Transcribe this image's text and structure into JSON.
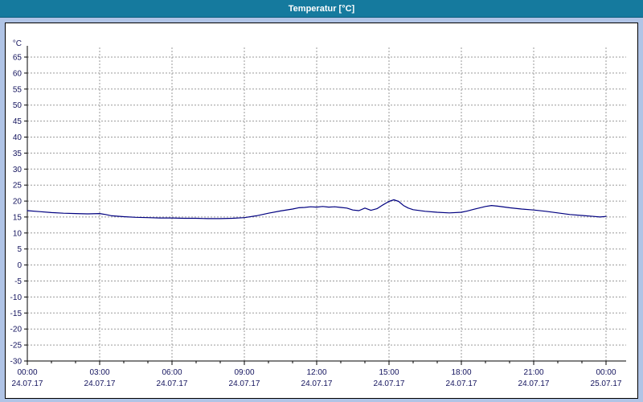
{
  "window": {
    "title": "Temperatur [°C]"
  },
  "colors": {
    "titlebar_bg": "#157a9e",
    "titlebar_text": "#ffffff",
    "window_bg": "#b0c4e6",
    "panel_bg": "#ffffff",
    "panel_border": "#000000",
    "grid": "#9a9a9a",
    "axis": "#000000",
    "tick_label": "#14145e",
    "series": "#000080"
  },
  "chart_data": {
    "type": "line",
    "title": "Temperatur [°C]",
    "xlabel": "",
    "ylabel": "°C",
    "ylim": [
      -30,
      67
    ],
    "ytick_step": 5,
    "yticks": [
      65,
      60,
      55,
      50,
      45,
      40,
      35,
      30,
      25,
      20,
      15,
      10,
      5,
      0,
      -5,
      -10,
      -15,
      -20,
      -25,
      -30
    ],
    "grid": "dashed",
    "legend_position": "none",
    "xticks": [
      {
        "hour": 0,
        "time": "00:00",
        "date": "24.07.17"
      },
      {
        "hour": 3,
        "time": "03:00",
        "date": "24.07.17"
      },
      {
        "hour": 6,
        "time": "06:00",
        "date": "24.07.17"
      },
      {
        "hour": 9,
        "time": "09:00",
        "date": "24.07.17"
      },
      {
        "hour": 12,
        "time": "12:00",
        "date": "24.07.17"
      },
      {
        "hour": 15,
        "time": "15:00",
        "date": "24.07.17"
      },
      {
        "hour": 18,
        "time": "18:00",
        "date": "24.07.17"
      },
      {
        "hour": 21,
        "time": "21:00",
        "date": "24.07.17"
      },
      {
        "hour": 24,
        "time": "00:00",
        "date": "25.07.17"
      }
    ],
    "series": [
      {
        "name": "Temperatur",
        "color": "#000080",
        "points": [
          [
            0,
            17.0
          ],
          [
            0.5,
            16.7
          ],
          [
            1,
            16.4
          ],
          [
            1.5,
            16.2
          ],
          [
            2,
            16.1
          ],
          [
            2.5,
            16.0
          ],
          [
            3,
            16.1
          ],
          [
            3.25,
            15.8
          ],
          [
            3.5,
            15.4
          ],
          [
            4,
            15.1
          ],
          [
            4.5,
            14.9
          ],
          [
            5,
            14.8
          ],
          [
            5.5,
            14.7
          ],
          [
            6,
            14.7
          ],
          [
            6.5,
            14.6
          ],
          [
            7,
            14.6
          ],
          [
            7.5,
            14.5
          ],
          [
            8,
            14.5
          ],
          [
            8.5,
            14.6
          ],
          [
            9,
            14.8
          ],
          [
            9.5,
            15.4
          ],
          [
            10,
            16.2
          ],
          [
            10.5,
            16.9
          ],
          [
            11,
            17.5
          ],
          [
            11.25,
            17.9
          ],
          [
            11.5,
            18.0
          ],
          [
            11.75,
            18.2
          ],
          [
            12,
            18.1
          ],
          [
            12.25,
            18.3
          ],
          [
            12.5,
            18.1
          ],
          [
            12.75,
            18.2
          ],
          [
            13,
            18.0
          ],
          [
            13.25,
            17.8
          ],
          [
            13.5,
            17.2
          ],
          [
            13.75,
            17.0
          ],
          [
            14,
            17.8
          ],
          [
            14.25,
            17.1
          ],
          [
            14.5,
            17.6
          ],
          [
            14.75,
            18.8
          ],
          [
            15,
            19.9
          ],
          [
            15.2,
            20.4
          ],
          [
            15.4,
            19.9
          ],
          [
            15.6,
            18.6
          ],
          [
            15.8,
            17.8
          ],
          [
            16,
            17.3
          ],
          [
            16.5,
            16.8
          ],
          [
            17,
            16.5
          ],
          [
            17.5,
            16.3
          ],
          [
            18,
            16.5
          ],
          [
            18.25,
            16.9
          ],
          [
            18.5,
            17.4
          ],
          [
            19,
            18.3
          ],
          [
            19.25,
            18.6
          ],
          [
            19.5,
            18.4
          ],
          [
            20,
            17.9
          ],
          [
            20.5,
            17.5
          ],
          [
            21,
            17.2
          ],
          [
            21.5,
            16.8
          ],
          [
            22,
            16.3
          ],
          [
            22.5,
            15.8
          ],
          [
            23,
            15.5
          ],
          [
            23.5,
            15.2
          ],
          [
            23.75,
            15.0
          ],
          [
            24,
            15.2
          ]
        ]
      }
    ]
  }
}
